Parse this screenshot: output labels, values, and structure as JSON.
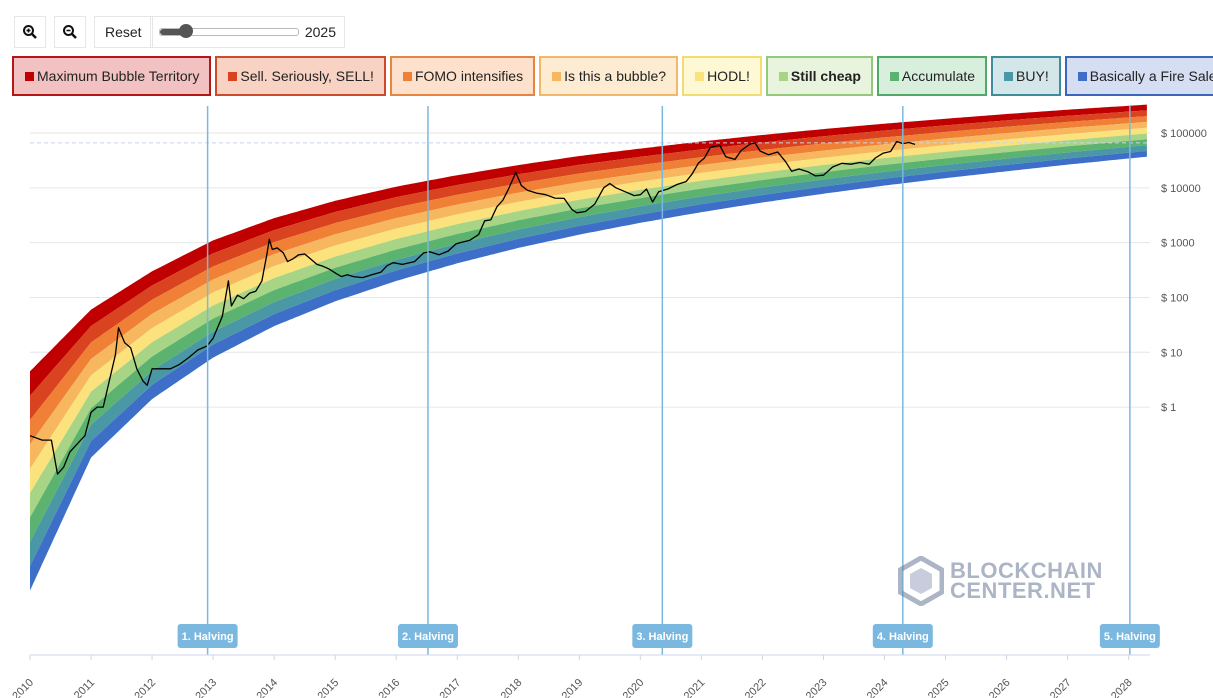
{
  "toolbar": {
    "zoom_in_label": "",
    "zoom_out_label": "",
    "reset_label": "Reset",
    "slider_value": "2025",
    "slider_fraction": 0.19
  },
  "legend": [
    {
      "label": "Maximum Bubble Territory",
      "color": "#c00000",
      "bg": "#f2c2c2",
      "border": "#b51616",
      "bold": false
    },
    {
      "label": "Sell. Seriously, SELL!",
      "color": "#d9431f",
      "bg": "#f8d3c4",
      "border": "#cf4a2b",
      "bold": false
    },
    {
      "label": "FOMO intensifies",
      "color": "#ef8036",
      "bg": "#fde1cd",
      "border": "#e8843f",
      "bold": false
    },
    {
      "label": "Is this a bubble?",
      "color": "#f6b75f",
      "bg": "#fdebd2",
      "border": "#f2b768",
      "bold": false
    },
    {
      "label": "HODL!",
      "color": "#fbe27c",
      "bg": "#fff8d4",
      "border": "#f3dc6f",
      "bold": false
    },
    {
      "label": "Still cheap",
      "color": "#a8d486",
      "bg": "#e8f4dd",
      "border": "#93c97a",
      "bold": true
    },
    {
      "label": "Accumulate",
      "color": "#5cb36f",
      "bg": "#d9efdd",
      "border": "#4eaa66",
      "bold": false
    },
    {
      "label": "BUY!",
      "color": "#4a98a6",
      "bg": "#d3e6ea",
      "border": "#3f8d99",
      "bold": false
    },
    {
      "label": "Basically a Fire Sale",
      "color": "#3d6fc9",
      "bg": "#d5def3",
      "border": "#3a66bd",
      "bold": false
    }
  ],
  "watermark": {
    "line1": "BLOCKCHAIN",
    "line2": "CENTER.NET"
  },
  "chart_data": {
    "type": "area",
    "title": "",
    "xlabel": "",
    "ylabel": "",
    "scale": "log",
    "x_ticks": [
      "2010",
      "2011",
      "2012",
      "2013",
      "2014",
      "2015",
      "2016",
      "2017",
      "2018",
      "2019",
      "2020",
      "2021",
      "2022",
      "2023",
      "2024",
      "2025",
      "2026",
      "2027",
      "2028"
    ],
    "y_ticks": [
      {
        "value": 1,
        "label": "$ 1"
      },
      {
        "value": 10,
        "label": "$ 10"
      },
      {
        "value": 100,
        "label": "$ 100"
      },
      {
        "value": 1000,
        "label": "$ 1000"
      },
      {
        "value": 10000,
        "label": "$ 10000"
      },
      {
        "value": 100000,
        "label": "$ 100000"
      }
    ],
    "xlim": [
      2010.0,
      2028.35
    ],
    "ylim": [
      3e-05,
      400000
    ],
    "crosshair_value": 66000,
    "halvings": [
      {
        "label": "1. Halving",
        "x": 2012.91
      },
      {
        "label": "2. Halving",
        "x": 2016.52
      },
      {
        "label": "3. Halving",
        "x": 2020.36
      },
      {
        "label": "4. Halving",
        "x": 2024.3
      },
      {
        "label": "5. Halving",
        "x": 2028.02
      }
    ],
    "rainbow_bands": {
      "top_line": [
        [
          2010.0,
          4.5
        ],
        [
          2011.0,
          60
        ],
        [
          2012.0,
          300
        ],
        [
          2013.0,
          1100
        ],
        [
          2014.0,
          2800
        ],
        [
          2015.0,
          5800
        ],
        [
          2016.0,
          10500
        ],
        [
          2017.0,
          17000
        ],
        [
          2018.0,
          26000
        ],
        [
          2019.0,
          38000
        ],
        [
          2020.0,
          52000
        ],
        [
          2021.0,
          70000
        ],
        [
          2022.0,
          92000
        ],
        [
          2023.0,
          118000
        ],
        [
          2024.0,
          148000
        ],
        [
          2025.0,
          182000
        ],
        [
          2026.0,
          222000
        ],
        [
          2027.0,
          266000
        ],
        [
          2028.3,
          330000
        ]
      ],
      "bottom_line": [
        [
          2010.0,
          0.00045
        ],
        [
          2011.0,
          0.12
        ],
        [
          2012.0,
          1.4
        ],
        [
          2013.0,
          8
        ],
        [
          2014.0,
          30
        ],
        [
          2015.0,
          85
        ],
        [
          2016.0,
          200
        ],
        [
          2017.0,
          420
        ],
        [
          2018.0,
          800
        ],
        [
          2019.0,
          1400
        ],
        [
          2020.0,
          2300
        ],
        [
          2021.0,
          3600
        ],
        [
          2022.0,
          5400
        ],
        [
          2023.0,
          7800
        ],
        [
          2024.0,
          11000
        ],
        [
          2025.0,
          15000
        ],
        [
          2026.0,
          20000
        ],
        [
          2027.0,
          26500
        ],
        [
          2028.3,
          37000
        ]
      ]
    },
    "price_series": [
      [
        2010.0,
        0.3
      ],
      [
        2010.2,
        0.25
      ],
      [
        2010.35,
        0.25
      ],
      [
        2010.45,
        0.06
      ],
      [
        2010.55,
        0.08
      ],
      [
        2010.65,
        0.15
      ],
      [
        2010.75,
        0.2
      ],
      [
        2010.9,
        0.3
      ],
      [
        2011.0,
        0.8
      ],
      [
        2011.1,
        1.0
      ],
      [
        2011.2,
        1.0
      ],
      [
        2011.3,
        3.0
      ],
      [
        2011.4,
        9.0
      ],
      [
        2011.45,
        28
      ],
      [
        2011.55,
        15
      ],
      [
        2011.65,
        12
      ],
      [
        2011.75,
        5.0
      ],
      [
        2011.85,
        3.0
      ],
      [
        2011.92,
        2.5
      ],
      [
        2012.0,
        5.0
      ],
      [
        2012.15,
        5.0
      ],
      [
        2012.3,
        5.0
      ],
      [
        2012.45,
        6.0
      ],
      [
        2012.6,
        8.0
      ],
      [
        2012.75,
        11
      ],
      [
        2012.9,
        13
      ],
      [
        2013.0,
        18
      ],
      [
        2013.15,
        45
      ],
      [
        2013.25,
        200
      ],
      [
        2013.3,
        70
      ],
      [
        2013.4,
        110
      ],
      [
        2013.5,
        95
      ],
      [
        2013.6,
        120
      ],
      [
        2013.7,
        130
      ],
      [
        2013.8,
        200
      ],
      [
        2013.88,
        600
      ],
      [
        2013.92,
        1150
      ],
      [
        2013.97,
        750
      ],
      [
        2014.05,
        800
      ],
      [
        2014.15,
        650
      ],
      [
        2014.22,
        450
      ],
      [
        2014.3,
        500
      ],
      [
        2014.4,
        600
      ],
      [
        2014.5,
        620
      ],
      [
        2014.6,
        500
      ],
      [
        2014.7,
        400
      ],
      [
        2014.8,
        370
      ],
      [
        2014.9,
        330
      ],
      [
        2015.0,
        280
      ],
      [
        2015.1,
        240
      ],
      [
        2015.2,
        260
      ],
      [
        2015.3,
        240
      ],
      [
        2015.45,
        230
      ],
      [
        2015.6,
        260
      ],
      [
        2015.75,
        290
      ],
      [
        2015.85,
        380
      ],
      [
        2015.95,
        430
      ],
      [
        2016.1,
        400
      ],
      [
        2016.3,
        450
      ],
      [
        2016.45,
        650
      ],
      [
        2016.55,
        680
      ],
      [
        2016.7,
        600
      ],
      [
        2016.85,
        700
      ],
      [
        2016.98,
        950
      ],
      [
        2017.05,
        1000
      ],
      [
        2017.2,
        1100
      ],
      [
        2017.35,
        1400
      ],
      [
        2017.45,
        2500
      ],
      [
        2017.55,
        2600
      ],
      [
        2017.65,
        4500
      ],
      [
        2017.75,
        6000
      ],
      [
        2017.85,
        10000
      ],
      [
        2017.96,
        19000
      ],
      [
        2018.05,
        11000
      ],
      [
        2018.15,
        9000
      ],
      [
        2018.3,
        8000
      ],
      [
        2018.45,
        7500
      ],
      [
        2018.6,
        6500
      ],
      [
        2018.75,
        6400
      ],
      [
        2018.88,
        4000
      ],
      [
        2018.96,
        3500
      ],
      [
        2019.1,
        3700
      ],
      [
        2019.25,
        5000
      ],
      [
        2019.4,
        10000
      ],
      [
        2019.5,
        12000
      ],
      [
        2019.6,
        10000
      ],
      [
        2019.75,
        8500
      ],
      [
        2019.9,
        7200
      ],
      [
        2020.0,
        7500
      ],
      [
        2020.1,
        9500
      ],
      [
        2020.2,
        5500
      ],
      [
        2020.3,
        8500
      ],
      [
        2020.45,
        9500
      ],
      [
        2020.6,
        11500
      ],
      [
        2020.75,
        13000
      ],
      [
        2020.85,
        18000
      ],
      [
        2020.95,
        28000
      ],
      [
        2021.05,
        35000
      ],
      [
        2021.15,
        55000
      ],
      [
        2021.3,
        60000
      ],
      [
        2021.4,
        37000
      ],
      [
        2021.55,
        33000
      ],
      [
        2021.65,
        48000
      ],
      [
        2021.8,
        63000
      ],
      [
        2021.88,
        66000
      ],
      [
        2021.96,
        47000
      ],
      [
        2022.1,
        40000
      ],
      [
        2022.25,
        45000
      ],
      [
        2022.38,
        30000
      ],
      [
        2022.48,
        20000
      ],
      [
        2022.6,
        22000
      ],
      [
        2022.75,
        19500
      ],
      [
        2022.87,
        16500
      ],
      [
        2023.0,
        17000
      ],
      [
        2023.15,
        24000
      ],
      [
        2023.3,
        28000
      ],
      [
        2023.45,
        27000
      ],
      [
        2023.6,
        29000
      ],
      [
        2023.75,
        27000
      ],
      [
        2023.85,
        35000
      ],
      [
        2023.98,
        43000
      ],
      [
        2024.1,
        46000
      ],
      [
        2024.2,
        70000
      ],
      [
        2024.3,
        64000
      ],
      [
        2024.4,
        67000
      ],
      [
        2024.5,
        62000
      ]
    ]
  }
}
